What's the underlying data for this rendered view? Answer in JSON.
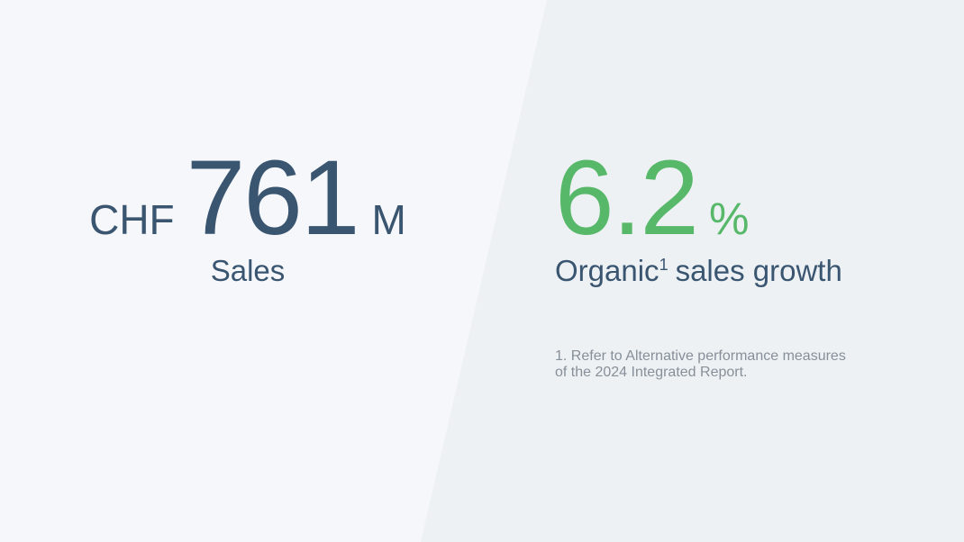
{
  "colors": {
    "bg_left": "#f5f7fa",
    "bg_right": "#edf1f4",
    "primary_text": "#3a5570",
    "accent_green": "#57b869",
    "footnote_gray": "#878f99"
  },
  "left_stat": {
    "currency": "CHF",
    "value": "761",
    "unit": "M",
    "label": "Sales"
  },
  "right_stat": {
    "value": "6.2",
    "unit": "%",
    "label_prefix": "Organic",
    "label_superscript": "1",
    "label_suffix": "sales growth"
  },
  "footnote": {
    "line1": "1. Refer to Alternative performance measures",
    "line2": "of the 2024 Integrated Report."
  }
}
